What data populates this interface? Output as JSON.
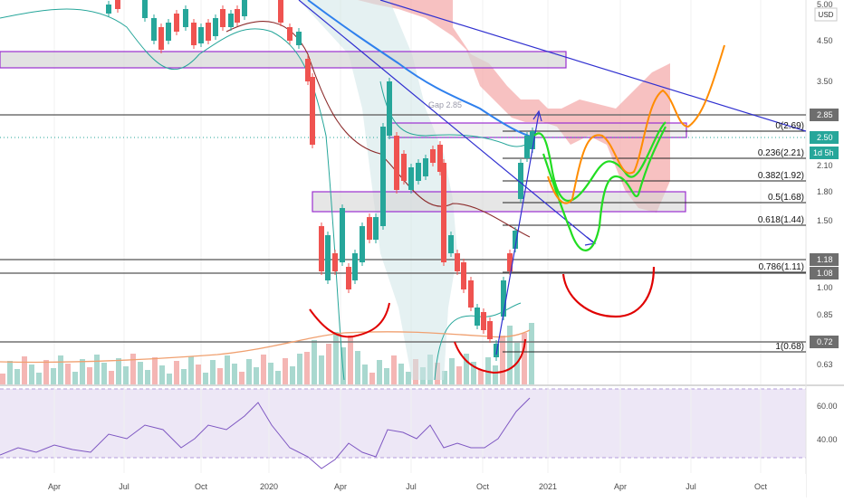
{
  "chart_data": [
    {
      "type": "candlestick",
      "title": "",
      "currency": "USD",
      "price_axis_ticks": [
        "3.50",
        "2.85",
        "2.50",
        "2.10",
        "1.80",
        "1.50",
        "1.18",
        "1.08",
        "1.00",
        "0.85",
        "0.72",
        "0.63"
      ],
      "price_axis_top_partial": "5.00",
      "price_axis_major": [
        "4.50"
      ],
      "time_axis_ticks": [
        "Apr",
        "Jul",
        "Oct",
        "2020",
        "Apr",
        "Jul",
        "Oct",
        "2021",
        "Apr",
        "Jul",
        "Oct"
      ],
      "last_price": "2.50",
      "countdown": "1d 5h",
      "horizontal_levels": [
        "2.85",
        "1.18",
        "1.08",
        "0.72"
      ],
      "fib_levels": [
        {
          "label": "0(2.69)",
          "value": 2.69
        },
        {
          "label": "0.236(2.21)",
          "value": 2.21
        },
        {
          "label": "0.382(1.92)",
          "value": 1.92
        },
        {
          "label": "0.5(1.68)",
          "value": 1.68
        },
        {
          "label": "0.618(1.44)",
          "value": 1.44
        },
        {
          "label": "0.786(1.11)",
          "value": 1.11
        },
        {
          "label": "1(0.68)",
          "value": 0.68
        }
      ],
      "annotation": "Gap 2.85",
      "colors": {
        "up": "#26a69a",
        "down": "#ef5350",
        "cloud": "#f4a6a6",
        "projection_green": "#22dd22",
        "projection_orange": "#ff8c00",
        "cup": "#e00000",
        "trendline": "#3030d0",
        "zone": "#9b30d0"
      }
    },
    {
      "type": "line",
      "indicator": "RSI",
      "ticks": [
        "60.00",
        "40.00"
      ],
      "colors": {
        "line": "#7e57c2",
        "band": "#ede7f6"
      }
    }
  ]
}
